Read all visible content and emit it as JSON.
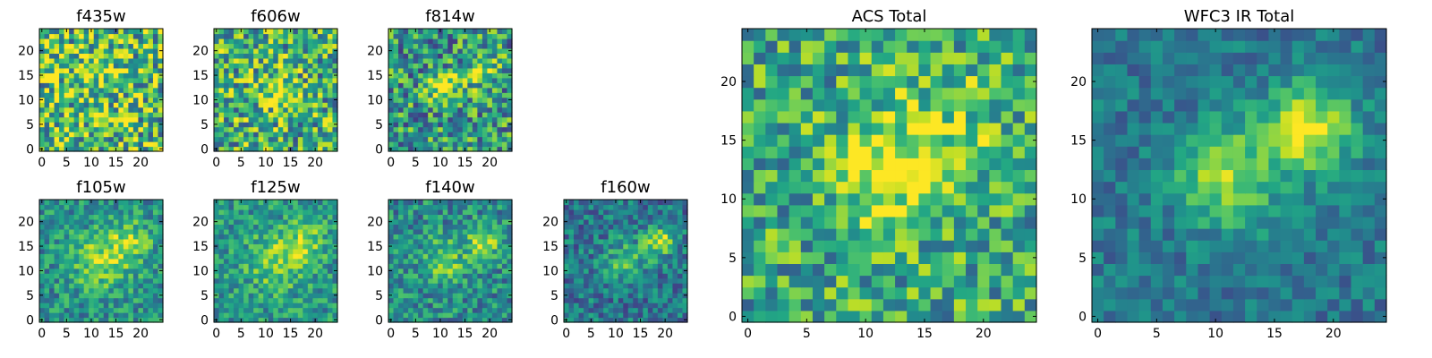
{
  "chart_data": [
    {
      "type": "heatmap",
      "title": "f435w",
      "xticks": [
        "0",
        "5",
        "10",
        "15",
        "20"
      ],
      "yticks": [
        "0",
        "5",
        "10",
        "15",
        "20"
      ],
      "xlim": [
        0,
        25
      ],
      "ylim": [
        0,
        25
      ],
      "pixels": 25,
      "colormap": "viridis",
      "grid": false,
      "features": [
        {
          "x": 12,
          "y": 15,
          "amp": 0.15,
          "sigma": 4
        }
      ],
      "noise": 0.42,
      "base": 0.68
    },
    {
      "type": "heatmap",
      "title": "f606w",
      "xticks": [
        "0",
        "5",
        "10",
        "15",
        "20"
      ],
      "yticks": [
        "0",
        "5",
        "10",
        "15",
        "20"
      ],
      "xlim": [
        0,
        25
      ],
      "ylim": [
        0,
        25
      ],
      "pixels": 25,
      "colormap": "viridis",
      "grid": false,
      "features": [
        {
          "x": 12,
          "y": 12,
          "amp": 0.25,
          "sigma": 3
        }
      ],
      "noise": 0.38,
      "base": 0.62
    },
    {
      "type": "heatmap",
      "title": "f814w",
      "xticks": [
        "0",
        "5",
        "10",
        "15",
        "20"
      ],
      "yticks": [
        "0",
        "5",
        "10",
        "15",
        "20"
      ],
      "xlim": [
        0,
        25
      ],
      "ylim": [
        0,
        25
      ],
      "pixels": 25,
      "colormap": "viridis",
      "grid": false,
      "features": [
        {
          "x": 11,
          "y": 12,
          "amp": 0.35,
          "sigma": 2.5
        },
        {
          "x": 19,
          "y": 16,
          "amp": 0.3,
          "sigma": 2.5
        }
      ],
      "noise": 0.36,
      "base": 0.52
    },
    {
      "type": "heatmap",
      "title": "f105w",
      "xticks": [
        "0",
        "5",
        "10",
        "15",
        "20"
      ],
      "yticks": [
        "0",
        "5",
        "10",
        "15",
        "20"
      ],
      "xlim": [
        0,
        25
      ],
      "ylim": [
        0,
        25
      ],
      "pixels": 25,
      "colormap": "viridis",
      "grid": false,
      "features": [
        {
          "x": 12,
          "y": 12,
          "amp": 0.35,
          "sigma": 4
        },
        {
          "x": 18,
          "y": 16,
          "amp": 0.3,
          "sigma": 3
        }
      ],
      "noise": 0.22,
      "base": 0.5
    },
    {
      "type": "heatmap",
      "title": "f125w",
      "xticks": [
        "0",
        "5",
        "10",
        "15",
        "20"
      ],
      "yticks": [
        "0",
        "5",
        "10",
        "15",
        "20"
      ],
      "xlim": [
        0,
        25
      ],
      "ylim": [
        0,
        25
      ],
      "pixels": 25,
      "colormap": "viridis",
      "grid": false,
      "features": [
        {
          "x": 12,
          "y": 12,
          "amp": 0.3,
          "sigma": 4
        },
        {
          "x": 18,
          "y": 16,
          "amp": 0.3,
          "sigma": 3
        }
      ],
      "noise": 0.22,
      "base": 0.52
    },
    {
      "type": "heatmap",
      "title": "f140w",
      "xticks": [
        "0",
        "5",
        "10",
        "15",
        "20"
      ],
      "yticks": [
        "0",
        "5",
        "10",
        "15",
        "20"
      ],
      "xlim": [
        0,
        25
      ],
      "ylim": [
        0,
        25
      ],
      "pixels": 25,
      "colormap": "viridis",
      "grid": false,
      "features": [
        {
          "x": 11,
          "y": 12,
          "amp": 0.3,
          "sigma": 3
        },
        {
          "x": 19,
          "y": 16,
          "amp": 0.45,
          "sigma": 2.2
        }
      ],
      "noise": 0.24,
      "base": 0.48
    },
    {
      "type": "heatmap",
      "title": "f160w",
      "xticks": [
        "0",
        "5",
        "10",
        "15",
        "20"
      ],
      "yticks": [
        "0",
        "5",
        "10",
        "15",
        "20"
      ],
      "xlim": [
        0,
        25
      ],
      "ylim": [
        0,
        25
      ],
      "pixels": 25,
      "colormap": "viridis",
      "grid": false,
      "features": [
        {
          "x": 12,
          "y": 12,
          "amp": 0.3,
          "sigma": 3
        },
        {
          "x": 19,
          "y": 16,
          "amp": 0.55,
          "sigma": 2
        }
      ],
      "noise": 0.22,
      "base": 0.4
    },
    {
      "type": "heatmap",
      "title": "ACS Total",
      "xticks": [
        "0",
        "5",
        "10",
        "15",
        "20"
      ],
      "yticks": [
        "0",
        "5",
        "10",
        "15",
        "20"
      ],
      "xlim": [
        0,
        25
      ],
      "ylim": [
        0,
        25
      ],
      "pixels": 25,
      "colormap": "viridis",
      "grid": false,
      "features": [
        {
          "x": 11,
          "y": 12,
          "amp": 0.3,
          "sigma": 3
        },
        {
          "x": 16,
          "y": 15,
          "amp": 0.25,
          "sigma": 4
        }
      ],
      "noise": 0.3,
      "base": 0.6
    },
    {
      "type": "heatmap",
      "title": "WFC3 IR Total",
      "xticks": [
        "0",
        "5",
        "10",
        "15",
        "20"
      ],
      "yticks": [
        "0",
        "5",
        "10",
        "15",
        "20"
      ],
      "xlim": [
        0,
        25
      ],
      "ylim": [
        0,
        25
      ],
      "pixels": 25,
      "colormap": "viridis",
      "grid": false,
      "features": [
        {
          "x": 11,
          "y": 12,
          "amp": 0.45,
          "sigma": 3
        },
        {
          "x": 18,
          "y": 16,
          "amp": 0.6,
          "sigma": 2.5
        }
      ],
      "noise": 0.15,
      "base": 0.4
    }
  ]
}
